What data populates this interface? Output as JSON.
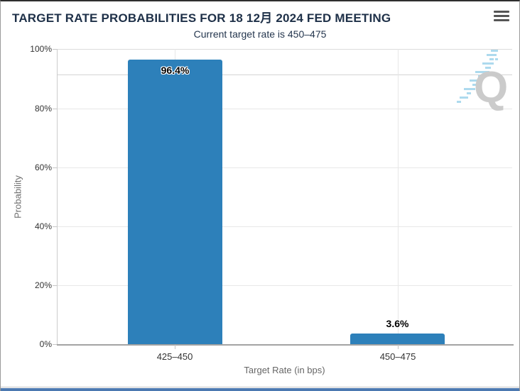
{
  "header": {
    "title": "TARGET RATE PROBABILITIES FOR 18 12月 2024 FED MEETING",
    "subtitle": "Current target rate is 450–475"
  },
  "chart_data": {
    "type": "bar",
    "title": "TARGET RATE PROBABILITIES FOR 18 12月 2024 FED MEETING",
    "subtitle": "Current target rate is 450–475",
    "categories": [
      "425–450",
      "450–475"
    ],
    "values": [
      96.4,
      3.6
    ],
    "data_labels": [
      "96.4%",
      "3.6%"
    ],
    "xlabel": "Target Rate (in bps)",
    "ylabel": "Probability",
    "ylim": [
      0,
      100
    ],
    "ytick_values": [
      0,
      20,
      40,
      60,
      80,
      100
    ],
    "yticks": [
      "0%",
      "20%",
      "40%",
      "60%",
      "80%",
      "100%"
    ],
    "grid": true,
    "legend_position": "none",
    "bar_color": "#2d80ba",
    "faint_line_pct": 91.5
  },
  "watermark": {
    "letter": "Q",
    "letter_color": "#c9c9c9",
    "dash_color": "#a9d9ee"
  },
  "colors": {
    "title_text": "#1e3048",
    "tick_label": "#333333",
    "axis_title": "#666666",
    "gridline": "#e8e8e8",
    "bottom_strip": "#4c79b1"
  }
}
